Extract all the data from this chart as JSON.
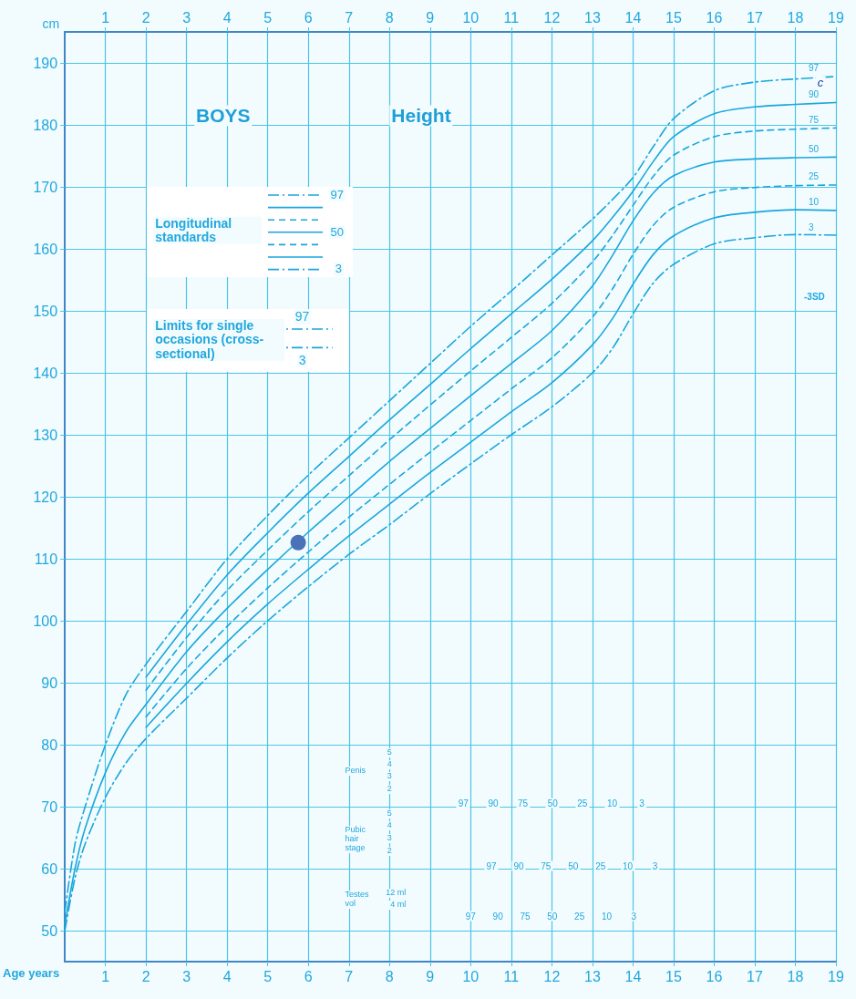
{
  "chart_data": {
    "type": "line",
    "title": "BOYS",
    "subtitle": "Height",
    "xlabel": "Age years",
    "ylabel": "cm",
    "xlim": [
      0,
      19
    ],
    "xticks": [
      1,
      2,
      3,
      4,
      5,
      6,
      7,
      8,
      9,
      10,
      11,
      12,
      13,
      14,
      15,
      16,
      17,
      18,
      19
    ],
    "x2lim": [
      0,
      19
    ],
    "x2ticks": [
      1,
      2,
      3,
      4,
      5,
      6,
      7,
      8,
      9,
      10,
      11,
      12,
      13,
      14,
      15,
      16,
      17,
      18,
      19
    ],
    "ylim": [
      45,
      195
    ],
    "yticks": [
      50,
      60,
      70,
      80,
      90,
      100,
      110,
      120,
      130,
      140,
      150,
      160,
      170,
      180,
      190
    ],
    "grid": true,
    "marker": "none",
    "legend": "top left",
    "series": [
      {
        "name": "97",
        "color": "#1aa6dc",
        "line_style": "dashdot",
        "x": [
          0,
          0.25,
          0.5,
          1,
          1.5,
          2,
          3,
          4,
          5,
          6,
          7,
          8,
          9,
          10,
          11,
          12,
          13,
          13.5,
          14,
          14.5,
          15,
          16,
          17,
          18,
          19
        ],
        "values": [
          53,
          64,
          70,
          80,
          88,
          93,
          101.5,
          110,
          117,
          123.5,
          129.5,
          135.5,
          141.5,
          147.5,
          153.2,
          159,
          164.8,
          168,
          171.5,
          176.5,
          181,
          185.5,
          186.9,
          187.4,
          187.8
        ]
      },
      {
        "name": "90",
        "color": "#1aa6dc",
        "line_style": "solid",
        "x": [
          2,
          3,
          4,
          5,
          6,
          7,
          8,
          9,
          10,
          11,
          12,
          13,
          13.5,
          14,
          14.5,
          15,
          16,
          17,
          18,
          19
        ],
        "values": [
          90.9,
          99.4,
          107.4,
          114.2,
          120.6,
          126.5,
          132.4,
          138.1,
          143.9,
          149.5,
          155.1,
          161.3,
          165.1,
          169.3,
          174.1,
          178.1,
          181.8,
          182.9,
          183.3,
          183.6
        ]
      },
      {
        "name": "75",
        "color": "#1aa6dc",
        "line_style": "dashed",
        "x": [
          2,
          3,
          4,
          5,
          6,
          7,
          8,
          9,
          10,
          11,
          12,
          13,
          13.5,
          14,
          14.5,
          15,
          16,
          17,
          18,
          19
        ],
        "values": [
          88.8,
          97.3,
          104.9,
          111.4,
          117.6,
          123.4,
          129.2,
          134.8,
          140.3,
          145.7,
          151.2,
          157.9,
          162.2,
          167,
          171.7,
          175.1,
          178.1,
          179,
          179.3,
          179.5
        ]
      },
      {
        "name": "50",
        "color": "#1aa6dc",
        "line_style": "solid",
        "x": [
          0,
          0.25,
          0.5,
          1,
          1.5,
          2,
          3,
          4,
          5,
          6,
          7,
          8,
          9,
          10,
          11,
          12,
          13,
          13.5,
          14,
          14.5,
          15,
          16,
          17,
          18,
          19
        ],
        "values": [
          51,
          60,
          66.5,
          75.5,
          82,
          86.5,
          95,
          102,
          108.3,
          114.3,
          120,
          125.7,
          131,
          136.3,
          141.5,
          146.8,
          154,
          159,
          164.5,
          169,
          171.8,
          174,
          174.5,
          174.7,
          174.8
        ]
      },
      {
        "name": "25",
        "color": "#1aa6dc",
        "line_style": "dashed",
        "x": [
          2,
          3,
          4,
          5,
          6,
          7,
          8,
          9,
          10,
          11,
          12,
          13,
          13.5,
          14,
          14.5,
          15,
          16,
          17,
          18,
          19
        ],
        "values": [
          84.5,
          92.3,
          99.1,
          105.3,
          111.1,
          116.7,
          122,
          127.2,
          132.3,
          137.4,
          142.4,
          149,
          153.6,
          159.1,
          163.8,
          166.7,
          169.2,
          169.9,
          170.2,
          170.3
        ]
      },
      {
        "name": "10",
        "color": "#1aa6dc",
        "line_style": "solid",
        "x": [
          2,
          3,
          4,
          5,
          6,
          7,
          8,
          9,
          10,
          11,
          12,
          13,
          13.5,
          14,
          14.5,
          15,
          16,
          17,
          18,
          19
        ],
        "values": [
          82.8,
          89.9,
          96.6,
          102.7,
          108.3,
          113.7,
          118.8,
          123.9,
          128.8,
          133.7,
          138.4,
          144.5,
          148.8,
          154.3,
          159.1,
          162.1,
          165,
          165.9,
          166.3,
          166.2
        ]
      },
      {
        "name": "3",
        "color": "#1aa6dc",
        "line_style": "dashdot",
        "x": [
          0,
          0.25,
          0.5,
          1,
          1.5,
          2,
          3,
          4,
          5,
          6,
          7,
          8,
          9,
          10,
          11,
          12,
          13,
          13.5,
          14,
          14.5,
          15,
          16,
          17,
          18,
          19
        ],
        "values": [
          50,
          58.5,
          64,
          71.5,
          77,
          81,
          87.5,
          94,
          100,
          105.5,
          110.7,
          115.5,
          120.5,
          125.3,
          130,
          134.5,
          140,
          144,
          149.5,
          154.5,
          157.5,
          160.8,
          161.8,
          162.3,
          162.2
        ]
      },
      {
        "type": "scatter",
        "color": "#4a72b8",
        "marker": "circle",
        "x": [
          5.75
        ],
        "values": [
          112.6
        ]
      }
    ],
    "annotations": [
      "Longitudinal standards",
      "97",
      "50",
      "3",
      "Limits for single occasions (cross-sectional)",
      "97",
      "3",
      "Penis",
      "Pubic hair stage",
      "Testes vol",
      "12 ml",
      "4 ml",
      "5",
      "4",
      "3",
      "2",
      "5",
      "4",
      "3",
      "2",
      "-3SD",
      "c",
      "97",
      "90",
      "75",
      "50",
      "25",
      "10",
      "3",
      "97",
      "90",
      "75",
      "50",
      "25",
      "10",
      "3",
      "97",
      "90",
      "75",
      "50",
      "25",
      "10",
      "3"
    ]
  }
}
